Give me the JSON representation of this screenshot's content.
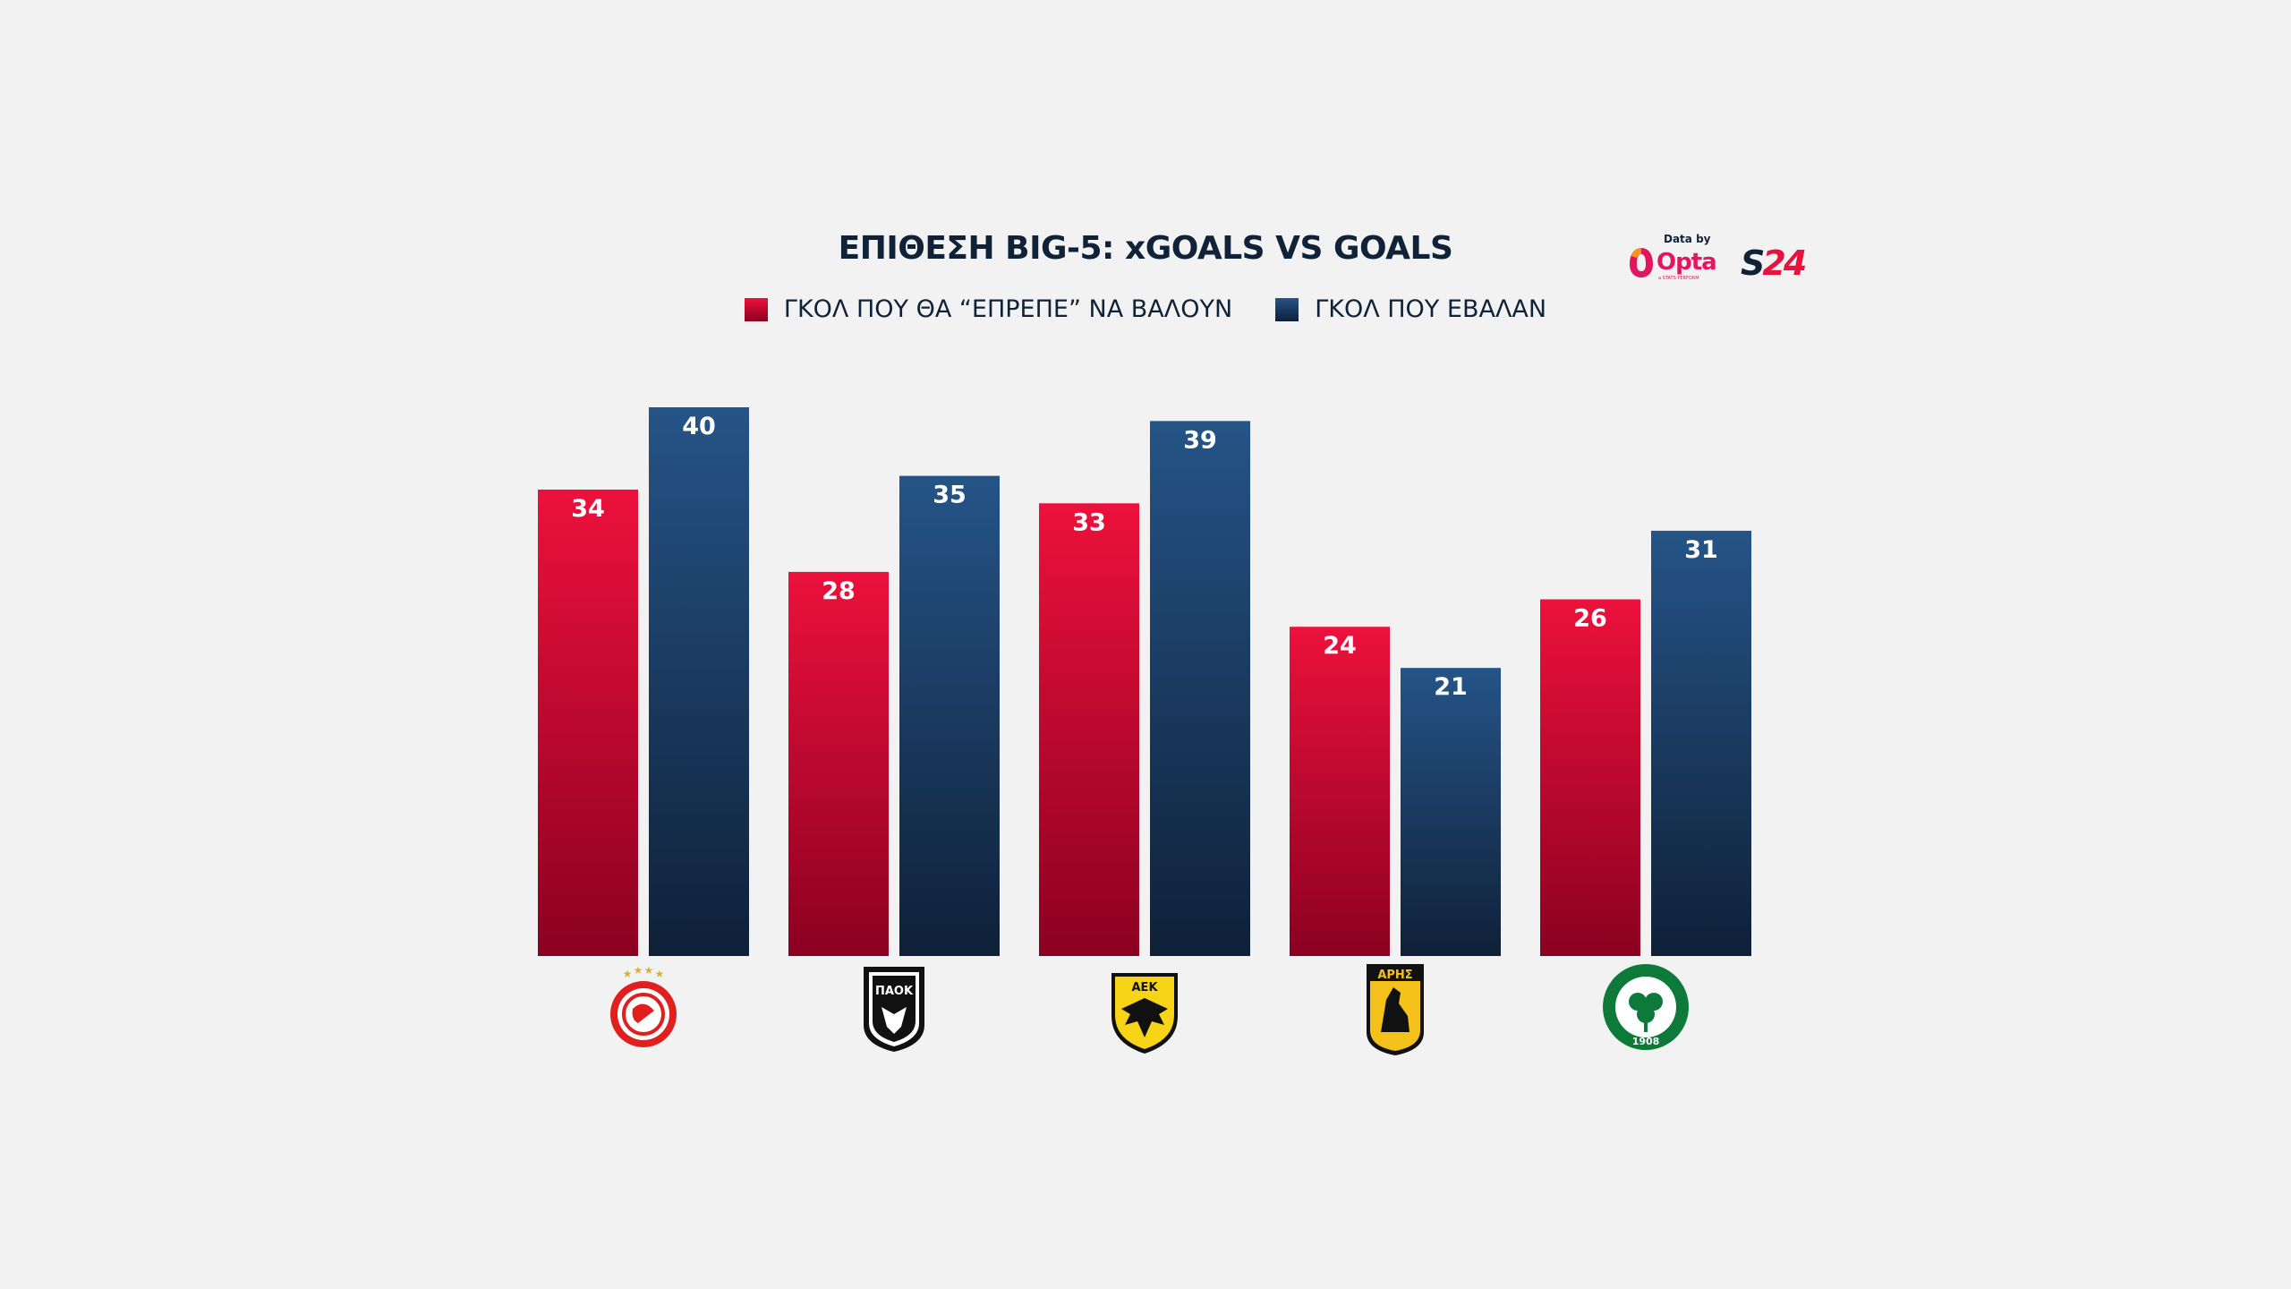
{
  "chart_data": {
    "type": "bar",
    "title": "ΕΠΙΘΕΣΗ BIG-5: xGOALS VS GOALS",
    "categories": [
      "",
      "",
      "",
      "",
      ""
    ],
    "series": [
      {
        "name": "ΓΚΟΛ ΠΟΥ ΘΑ “ΕΠΡΕΠΕ” ΝΑ ΒΑΛΟΥΝ",
        "values": [
          34,
          28,
          33,
          24,
          26
        ],
        "color": "#ec113c"
      },
      {
        "name": "ΓΚΟΛ ΠΟΥ ΕΒΑΛΑΝ",
        "values": [
          40,
          35,
          39,
          21,
          31
        ],
        "color": "#255487"
      }
    ],
    "ylim": [
      0,
      40
    ],
    "grid": false,
    "legend": "top"
  },
  "teams": [
    {
      "logo": "olympiacos-logo",
      "text": ""
    },
    {
      "logo": "paok-logo",
      "text": "ΠΑΟΚ"
    },
    {
      "logo": "aek-logo",
      "text": "ΑΕΚ"
    },
    {
      "logo": "aris-logo",
      "text": "ΑΡΗΣ"
    },
    {
      "logo": "panathinaikos-logo",
      "text": "1908"
    }
  ],
  "brand": {
    "data_by": "Data by",
    "opta": "Opta",
    "opta_sub": "a STATS PERFORM",
    "s24_s": "S",
    "s24_num": "24"
  },
  "colors": {
    "red_top": "#ec113c",
    "red_bottom": "#8b0021",
    "blue_top": "#255487",
    "blue_bottom": "#0f2038",
    "title": "#0f2238"
  }
}
